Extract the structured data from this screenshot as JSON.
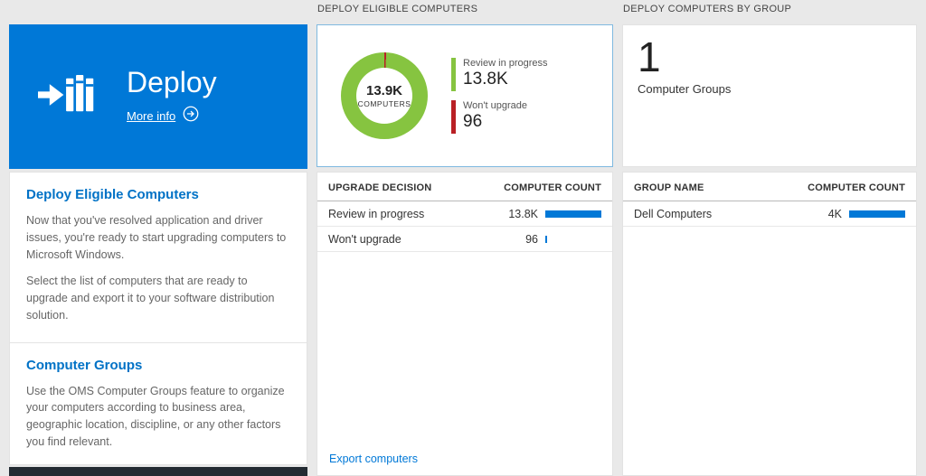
{
  "colors": {
    "tile_blue": "#0078d7",
    "heading_blue": "#0072c6",
    "bar_blue": "#0078d7",
    "donut_green": "#86c440",
    "donut_red": "#b92025"
  },
  "left_tile": {
    "title": "Deploy",
    "more_info_label": "More info"
  },
  "left_panel": {
    "sections": [
      {
        "heading": "Deploy Eligible Computers",
        "paragraphs": [
          "Now that you've resolved application and driver issues, you're ready to start upgrading computers to Microsoft Windows.",
          "Select the list of computers that are ready to upgrade and export it to your software distribution solution."
        ]
      },
      {
        "heading": "Computer Groups",
        "paragraphs": [
          "Use the OMS Computer Groups feature to organize your computers according to business area, geographic location, discipline, or any other factors you find relevant."
        ]
      }
    ]
  },
  "middle": {
    "header": "DEPLOY ELIGIBLE COMPUTERS",
    "donut": {
      "center_value": "13.9K",
      "center_label": "COMPUTERS",
      "legend": [
        {
          "label": "Review in progress",
          "value": "13.8K"
        },
        {
          "label": "Won't upgrade",
          "value": "96"
        }
      ]
    },
    "table": {
      "columns": [
        "UPGRADE DECISION",
        "COMPUTER COUNT"
      ],
      "rows": [
        {
          "label": "Review in progress",
          "value": "13.8K",
          "bar_pct": 100
        },
        {
          "label": "Won't upgrade",
          "value": "96",
          "bar_pct": 1.5
        }
      ]
    },
    "export_link": "Export computers"
  },
  "right": {
    "header": "DEPLOY COMPUTERS BY GROUP",
    "summary": {
      "value": "1",
      "label": "Computer Groups"
    },
    "table": {
      "columns": [
        "GROUP NAME",
        "COMPUTER COUNT"
      ],
      "rows": [
        {
          "label": "Dell Computers",
          "value": "4K",
          "bar_pct": 100
        }
      ]
    }
  },
  "chart_data": {
    "type": "pie",
    "title": "Deploy Eligible Computers",
    "labels": [
      "Review in progress",
      "Won't upgrade"
    ],
    "values": [
      13800,
      96
    ],
    "colors": [
      "#86c440",
      "#b92025"
    ],
    "center_total": "13.9K",
    "center_unit": "COMPUTERS",
    "legend_position": "right"
  }
}
